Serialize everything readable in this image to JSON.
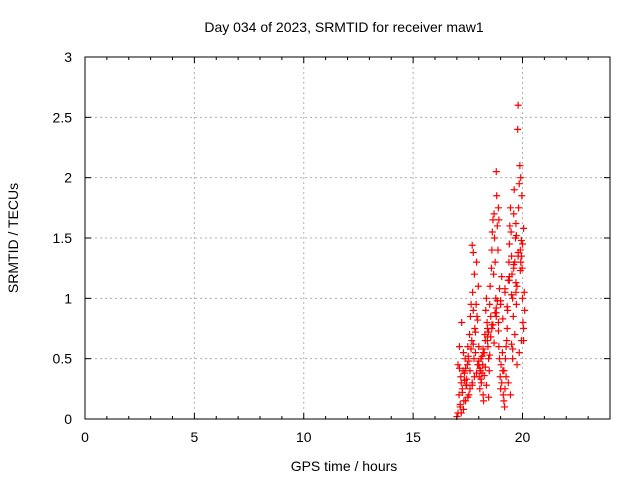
{
  "chart_data": {
    "type": "scatter",
    "title": "Day 034 of 2023, SRMTID for receiver maw1",
    "xlabel": "GPS time / hours",
    "ylabel": "SRMTID / TECUs",
    "xlim": [
      0,
      24
    ],
    "ylim": [
      0,
      3
    ],
    "xticks": [
      0,
      5,
      10,
      15,
      20
    ],
    "xtick_labels": [
      "0",
      "5",
      "10",
      "15",
      "20"
    ],
    "yticks": [
      0,
      0.5,
      1,
      1.5,
      2,
      2.5,
      3
    ],
    "ytick_labels": [
      "0",
      "0.5",
      "1",
      "1.5",
      "2",
      "2.5",
      "3"
    ],
    "grid": true,
    "marker": "plus",
    "series": [
      {
        "name": "maw1",
        "color": "#ff0000",
        "x": [
          17.0,
          17.05,
          17.1,
          17.12,
          17.15,
          17.18,
          17.2,
          17.22,
          17.25,
          17.28,
          17.3,
          17.32,
          17.35,
          17.38,
          17.4,
          17.42,
          17.45,
          17.48,
          17.5,
          17.52,
          17.55,
          17.58,
          17.6,
          17.62,
          17.65,
          17.68,
          17.7,
          17.72,
          17.75,
          17.78,
          17.8,
          17.82,
          17.85,
          17.88,
          17.9,
          17.92,
          17.95,
          17.98,
          18.0,
          18.02,
          18.05,
          18.08,
          18.1,
          18.12,
          18.15,
          18.18,
          18.2,
          18.22,
          18.25,
          18.28,
          18.3,
          18.32,
          18.35,
          18.38,
          18.4,
          18.42,
          18.45,
          18.48,
          18.5,
          18.52,
          18.55,
          18.58,
          18.6,
          18.62,
          18.65,
          18.68,
          18.7,
          18.72,
          18.75,
          18.78,
          18.8,
          18.82,
          18.85,
          18.88,
          18.9,
          18.92,
          18.95,
          18.98,
          19.0,
          19.02,
          19.05,
          19.08,
          19.1,
          19.12,
          19.15,
          19.18,
          19.2,
          19.22,
          19.25,
          19.28,
          19.3,
          19.32,
          19.35,
          19.38,
          19.4,
          19.42,
          19.45,
          19.48,
          19.5,
          19.52,
          19.55,
          19.58,
          19.6,
          19.62,
          19.65,
          19.68,
          19.7,
          19.72,
          19.75,
          19.78,
          19.8,
          19.82,
          19.85,
          19.88,
          19.9,
          19.92,
          19.95,
          19.98,
          20.0,
          20.02,
          20.05,
          20.08,
          20.1,
          17.15,
          17.25,
          17.35,
          17.45,
          17.55,
          17.65,
          17.75,
          17.85,
          17.95,
          18.05,
          18.15,
          18.25,
          18.35,
          18.45,
          18.55,
          18.65,
          18.75,
          18.85,
          18.95,
          19.05,
          19.15,
          19.25,
          19.35,
          19.45,
          19.55,
          19.65,
          19.75,
          19.85,
          19.95,
          20.05,
          17.2,
          17.4,
          17.6,
          17.8,
          18.0,
          18.2,
          18.4,
          18.6,
          18.8,
          19.0,
          19.2,
          19.4,
          19.6,
          19.8,
          20.0,
          18.1,
          18.3,
          18.5,
          18.7,
          18.9,
          19.1,
          19.3,
          19.5,
          19.7,
          19.9,
          17.3,
          17.5,
          17.7,
          17.9,
          18.0,
          18.2,
          18.4,
          18.6,
          18.8,
          19.0,
          19.2,
          19.4,
          19.6,
          19.8,
          19.95,
          20.05,
          19.92,
          19.97,
          18.9,
          18.92,
          17.7,
          17.75,
          19.5,
          19.55,
          18.45,
          18.55,
          17.05,
          17.12,
          19.7,
          19.72,
          18.75,
          18.8
        ],
        "y": [
          0.02,
          0.45,
          0.2,
          0.6,
          0.1,
          0.35,
          0.3,
          0.8,
          0.25,
          0.4,
          0.55,
          0.15,
          0.38,
          0.5,
          0.42,
          0.28,
          0.33,
          0.45,
          0.6,
          0.52,
          0.2,
          0.7,
          0.4,
          0.85,
          0.95,
          0.65,
          0.3,
          1.05,
          0.9,
          0.5,
          1.2,
          0.75,
          0.55,
          0.95,
          1.3,
          0.85,
          0.45,
          1.1,
          0.6,
          0.35,
          0.25,
          0.4,
          0.5,
          0.3,
          0.38,
          0.45,
          0.2,
          0.15,
          0.55,
          0.7,
          0.65,
          0.9,
          1.0,
          0.8,
          0.75,
          0.6,
          0.5,
          0.4,
          0.95,
          1.1,
          0.85,
          1.25,
          1.4,
          1.55,
          1.65,
          1.2,
          1.7,
          1.5,
          1.3,
          1.0,
          2.05,
          1.85,
          1.6,
          1.4,
          0.8,
          0.6,
          0.5,
          0.35,
          0.25,
          0.45,
          0.3,
          0.55,
          0.4,
          0.2,
          0.15,
          0.1,
          0.25,
          0.5,
          0.35,
          0.65,
          0.75,
          0.9,
          1.15,
          1.3,
          1.45,
          1.6,
          1.75,
          1.55,
          1.35,
          1.2,
          1.0,
          0.85,
          1.7,
          1.9,
          1.3,
          1.5,
          1.05,
          0.95,
          1.1,
          2.4,
          2.6,
          1.75,
          1.95,
          2.1,
          1.4,
          1.3,
          1.35,
          1.25,
          1.0,
          0.8,
          0.65,
          1.05,
          0.9,
          0.12,
          0.22,
          0.32,
          0.28,
          0.48,
          0.58,
          0.62,
          0.72,
          0.82,
          0.42,
          0.52,
          0.36,
          0.28,
          0.18,
          0.68,
          0.78,
          0.88,
          0.98,
          1.08,
          1.18,
          0.4,
          0.6,
          0.3,
          0.2,
          0.5,
          0.7,
          0.45,
          0.55,
          0.65,
          0.75,
          0.05,
          0.15,
          0.25,
          0.35,
          0.45,
          0.55,
          0.65,
          0.75,
          0.85,
          0.95,
          1.05,
          1.15,
          1.25,
          1.35,
          1.45,
          0.33,
          0.43,
          0.53,
          0.63,
          0.73,
          0.83,
          0.93,
          1.03,
          1.13,
          1.23,
          0.08,
          0.18,
          0.28,
          0.38,
          0.48,
          0.58,
          0.68,
          0.78,
          0.88,
          0.98,
          1.08,
          1.18,
          1.28,
          1.38,
          1.48,
          1.58,
          2.0,
          1.85,
          1.75,
          1.65,
          1.44,
          1.38,
          0.62,
          0.58,
          0.72,
          0.68,
          0.05,
          0.42,
          1.62,
          1.52,
          0.88,
          0.92
        ]
      }
    ]
  }
}
